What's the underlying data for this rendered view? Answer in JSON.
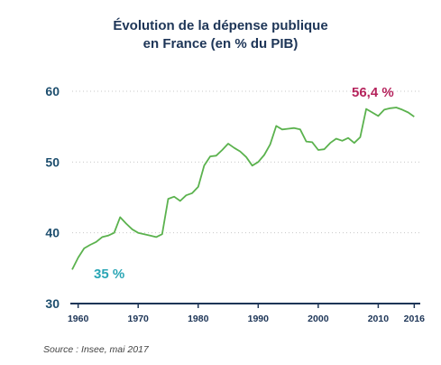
{
  "chart_data": {
    "type": "line",
    "title_lines": [
      "Évolution de la dépense publique",
      "en France (en % du PIB)"
    ],
    "y_ticks": [
      "30",
      "40",
      "50",
      "60"
    ],
    "x_ticks": [
      "1960",
      "1970",
      "1980",
      "1990",
      "2000",
      "2010",
      "2016"
    ],
    "ylim": [
      30,
      60
    ],
    "xlim": [
      1959,
      2017
    ],
    "grid": true,
    "series": [
      {
        "color": "#5bb24e",
        "x": [
          1959,
          1960,
          1961,
          1962,
          1963,
          1964,
          1965,
          1966,
          1967,
          1968,
          1969,
          1970,
          1971,
          1972,
          1973,
          1974,
          1975,
          1976,
          1977,
          1978,
          1979,
          1980,
          1981,
          1982,
          1983,
          1984,
          1985,
          1986,
          1987,
          1988,
          1989,
          1990,
          1991,
          1992,
          1993,
          1994,
          1995,
          1996,
          1997,
          1998,
          1999,
          2000,
          2001,
          2002,
          2003,
          2004,
          2005,
          2006,
          2007,
          2008,
          2009,
          2010,
          2011,
          2012,
          2013,
          2014,
          2015,
          2016
        ],
        "values": [
          34.8,
          36.5,
          37.8,
          38.3,
          38.7,
          39.4,
          39.6,
          40.0,
          42.2,
          41.3,
          40.5,
          40.0,
          39.8,
          39.6,
          39.4,
          39.8,
          44.8,
          45.1,
          44.5,
          45.3,
          45.6,
          46.5,
          49.5,
          50.8,
          50.9,
          51.7,
          52.6,
          52.0,
          51.5,
          50.7,
          49.5,
          50.0,
          51.0,
          52.5,
          55.1,
          54.6,
          54.7,
          54.8,
          54.6,
          52.9,
          52.8,
          51.7,
          51.8,
          52.7,
          53.3,
          53.0,
          53.4,
          52.7,
          53.5,
          57.5,
          57.0,
          56.5,
          57.4,
          57.6,
          57.7,
          57.4,
          57.0,
          56.4
        ]
      }
    ],
    "annotations": [
      {
        "text": "35 %",
        "x": 1960,
        "y": 34.8
      },
      {
        "text": "56,4 %",
        "x": 2016,
        "y": 56.4
      }
    ],
    "source": "Source : Insee, mai 2017",
    "colors": {
      "line": "#5bb24e",
      "axis": "#1d3557",
      "grid": "#c7c7c7",
      "start_label": "#2aa6b5",
      "end_label": "#b5235c"
    }
  }
}
